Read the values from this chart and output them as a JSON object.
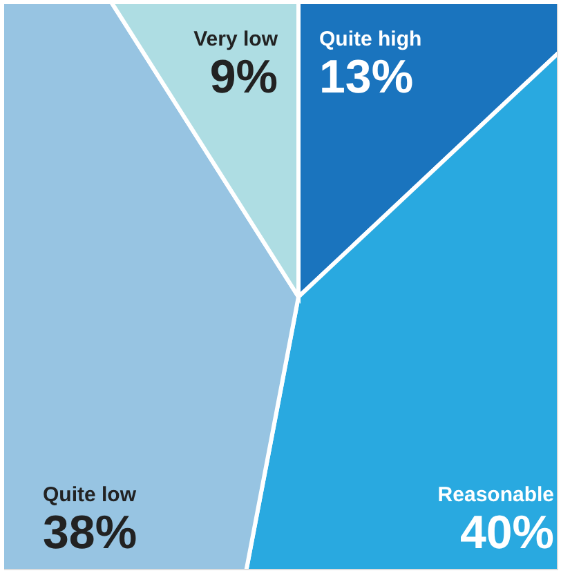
{
  "chart_data": {
    "type": "pie",
    "categories": [
      "Quite high",
      "Reasonable",
      "Quite low",
      "Very low"
    ],
    "values": [
      13,
      40,
      38,
      9
    ],
    "colors": [
      "#1a74be",
      "#29a9e0",
      "#97c4e2",
      "#aedde3"
    ],
    "value_labels": [
      "13%",
      "40%",
      "38%",
      "9%"
    ]
  }
}
